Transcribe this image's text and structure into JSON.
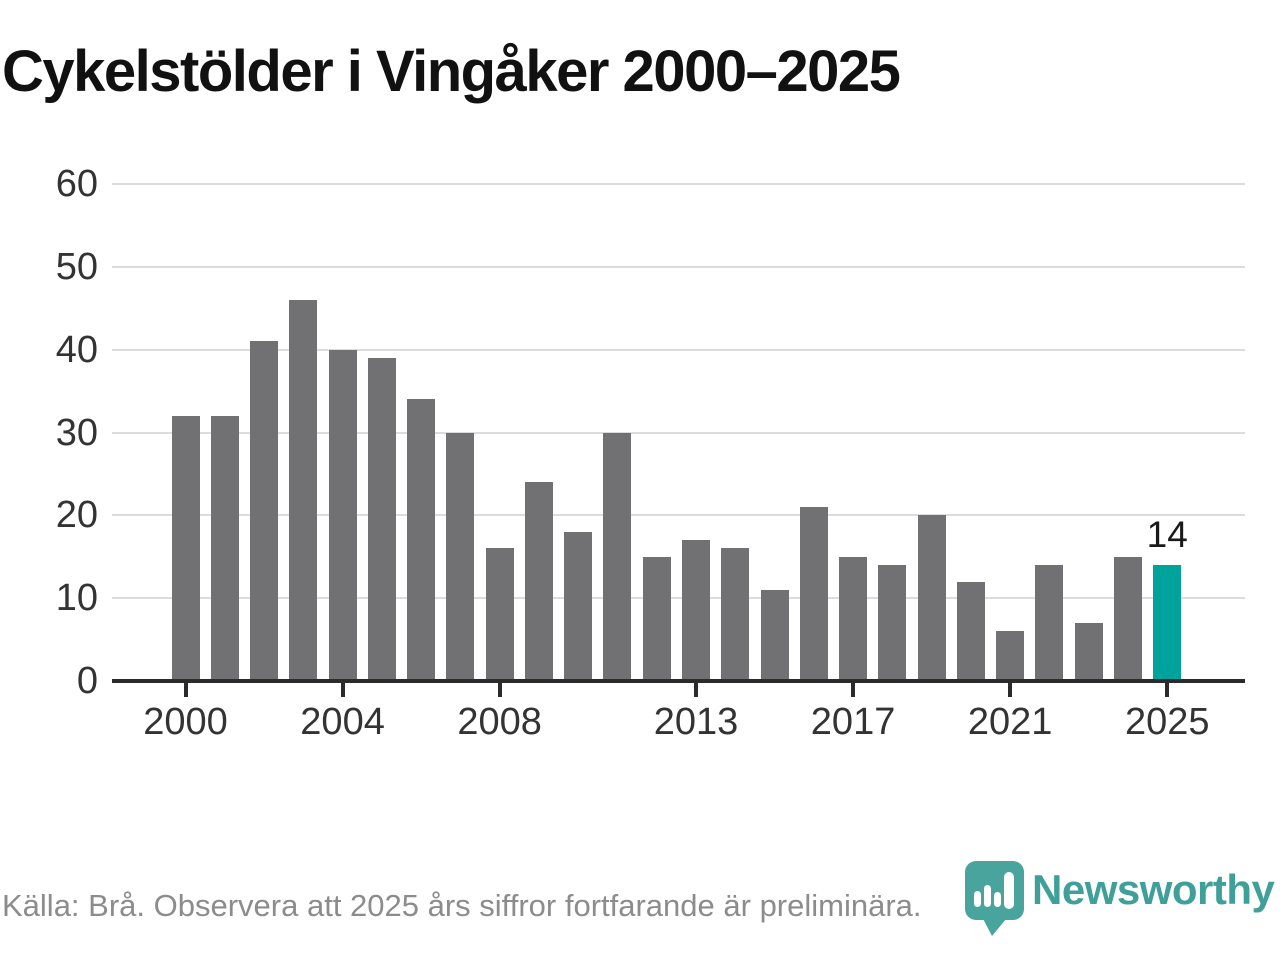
{
  "title": "Cykelstölder i Vingåker 2000–2025",
  "source_note": "Källa: Brå. Observera att 2025 års siffror fortfarande är preliminära.",
  "branding": {
    "logo_text": "Newsworthy",
    "logo_icon": "newsworthy-pin-barchart-icon"
  },
  "colors": {
    "background": "#ffffff",
    "title": "#111111",
    "bar": "#717174",
    "highlight_bar": "#00a39b",
    "gridline": "#dcdcdc",
    "axis": "#2b2b2b",
    "tick_label": "#333333",
    "annotation": "#1a1a1a",
    "source_text": "#8c8c8c",
    "brand_text": "#3f9f99",
    "brand_icon": "#4aa49e"
  },
  "chart_data": {
    "type": "bar",
    "title": "Cykelstölder i Vingåker 2000–2025",
    "categories": [
      2000,
      2001,
      2002,
      2003,
      2004,
      2005,
      2006,
      2007,
      2008,
      2009,
      2010,
      2011,
      2012,
      2013,
      2014,
      2015,
      2016,
      2017,
      2018,
      2019,
      2020,
      2021,
      2022,
      2023,
      2024,
      2025
    ],
    "values": [
      32,
      32,
      41,
      46,
      40,
      39,
      34,
      30,
      16,
      24,
      18,
      30,
      15,
      17,
      16,
      11,
      21,
      15,
      14,
      20,
      12,
      6,
      14,
      7,
      15,
      14
    ],
    "highlight_category": 2025,
    "highlight_index": 25,
    "highlight_label": "14",
    "xlabel": "",
    "ylabel": "",
    "ylim": [
      0,
      60
    ],
    "yticks": [
      0,
      10,
      20,
      30,
      40,
      50,
      60
    ],
    "xticks": [
      2000,
      2004,
      2008,
      2013,
      2017,
      2021,
      2025
    ],
    "grid": "horizontal-only",
    "legend": "none"
  }
}
